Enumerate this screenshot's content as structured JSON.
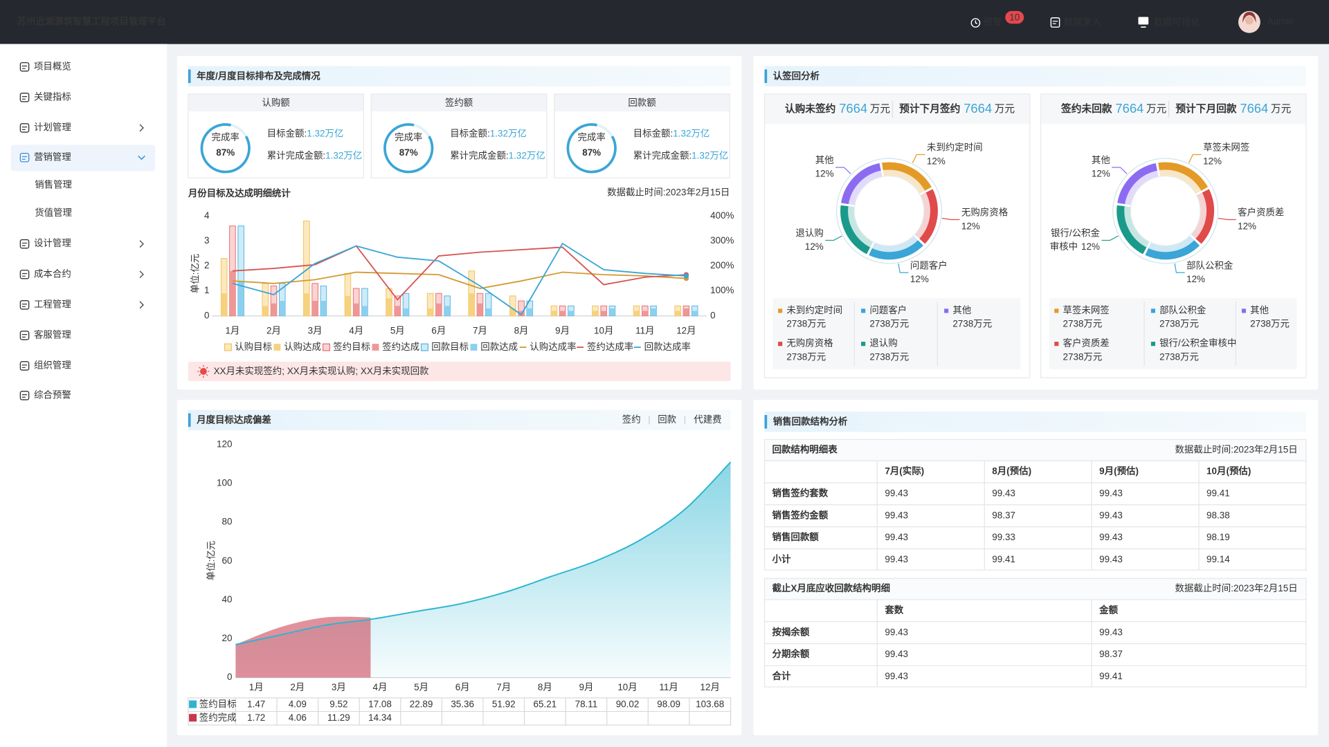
{
  "header": {
    "title": "苏州近湖源筑智慧工程项目管理平台",
    "nav": [
      {
        "label": "预警",
        "badge": 10
      },
      {
        "label": "数据录入"
      },
      {
        "label": "数据可视化"
      }
    ],
    "user": "Admin"
  },
  "sidebar": {
    "items": [
      {
        "label": "项目概览"
      },
      {
        "label": "关键指标"
      },
      {
        "label": "计划管理"
      },
      {
        "label": "营销管理",
        "children": [
          "销售管理",
          "货值管理"
        ]
      },
      {
        "label": "设计管理"
      },
      {
        "label": "成本合约"
      },
      {
        "label": "工程管理"
      },
      {
        "label": "客服管理"
      },
      {
        "label": "组织管理"
      },
      {
        "label": "综合预警"
      }
    ]
  },
  "targets": {
    "title": "年度/月度目标排布及完成情况",
    "cards": [
      {
        "title": "认购额",
        "rate_label": "完成率",
        "rate": 87,
        "rate_value_label": "87%",
        "target_label": "目标金额:",
        "target": "1.32万亿",
        "done_label": "累计完成金额:",
        "done": "1.32万亿"
      },
      {
        "title": "签约额",
        "rate_label": "完成率",
        "rate": 87,
        "rate_value_label": "87%",
        "target_label": "目标金额:",
        "target": "1.32万亿",
        "done_label": "累计完成金额:",
        "done": "1.32万亿"
      },
      {
        "title": "回款额",
        "rate_label": "完成率",
        "rate": 87,
        "rate_value_label": "87%",
        "target_label": "目标金额:",
        "target": "1.32万亿",
        "done_label": "累计完成金额:",
        "done": "1.32万亿"
      }
    ],
    "chart": {
      "type": "combo",
      "title": "月份目标及达成明细统计",
      "note": "数据截止时间:2023年2月15日",
      "ylabel": "单位:亿元",
      "categories": [
        "1月",
        "2月",
        "3月",
        "4月",
        "5月",
        "6月",
        "7月",
        "8月",
        "9月",
        "10月",
        "11月",
        "12月"
      ],
      "ylim": [
        0,
        4
      ],
      "yticks": [
        0,
        1,
        2,
        3,
        4
      ],
      "y2lim": [
        0,
        400
      ],
      "y2ticks": [
        0,
        {
          "value": 100,
          "label": "100%"
        },
        {
          "value": 200,
          "label": "200%"
        },
        {
          "value": 300,
          "label": "300%"
        },
        {
          "value": 400,
          "label": "400%"
        }
      ],
      "series": [
        {
          "name": "认购目标",
          "color": "#fbe9bd",
          "stroke": "#efc25f",
          "values": [
            2.3,
            1.3,
            3.8,
            1.7,
            1.1,
            0.9,
            1.8,
            0.8,
            0.4,
            0.4,
            0.4,
            0.4
          ]
        },
        {
          "name": "认购达成",
          "color": "#f6d27e",
          "values": [
            0.9,
            0.4,
            0.9,
            0.8,
            0.7,
            0.3,
            0.9,
            0.3,
            0.2,
            0.2,
            0.2,
            0.2
          ]
        },
        {
          "name": "签约目标",
          "color": "#fbd3d3",
          "stroke": "#e46f6f",
          "values": [
            3.6,
            1.2,
            1.3,
            1.1,
            0.8,
            0.9,
            0.9,
            0.6,
            0.4,
            0.4,
            0.4,
            0.4
          ]
        },
        {
          "name": "签约达成",
          "color": "#ef9797",
          "values": [
            1.8,
            0.5,
            0.6,
            0.5,
            0.4,
            0.5,
            0.5,
            0.2,
            0.2,
            0.2,
            0.2,
            0.3
          ]
        },
        {
          "name": "回款目标",
          "color": "#cdebf8",
          "stroke": "#55b5e0",
          "values": [
            3.6,
            1.3,
            1.2,
            1.1,
            0.9,
            0.8,
            0.9,
            0.6,
            0.4,
            0.4,
            0.4,
            0.4
          ]
        },
        {
          "name": "回款达成",
          "color": "#8ccfee",
          "values": [
            1.4,
            0.6,
            0.6,
            0.4,
            0.3,
            0.4,
            0.3,
            0.3,
            0.2,
            0.3,
            0.3,
            0.2
          ]
        },
        {
          "name": "认购达成率",
          "color": "#d39a33",
          "axis": "y2",
          "values": [
            140,
            130,
            145,
            175,
            170,
            165,
            110,
            140,
            175,
            165,
            160,
            150
          ]
        },
        {
          "name": "签约达成率",
          "color": "#d9534f",
          "axis": "y2",
          "values": [
            180,
            190,
            205,
            280,
            65,
            240,
            255,
            265,
            275,
            125,
            155,
            165
          ]
        },
        {
          "name": "回款达成率",
          "color": "#3aa5d6",
          "axis": "y2",
          "values": [
            130,
            85,
            210,
            280,
            235,
            220,
            120,
            5,
            290,
            185,
            170,
            160
          ]
        }
      ]
    },
    "warning": "XX月未实现签约; XX月未实现认购; XX月未实现回款"
  },
  "deviation": {
    "title": "月度目标达成偏差",
    "tabs": [
      "签约",
      "回款",
      "代建费"
    ],
    "chart": {
      "type": "area",
      "ylabel": "单位:亿元",
      "categories": [
        "1月",
        "2月",
        "3月",
        "4月",
        "5月",
        "6月",
        "7月",
        "8月",
        "9月",
        "10月",
        "11月",
        "12月"
      ],
      "ylim": [
        0,
        120
      ],
      "yticks": [
        0,
        20,
        40,
        60,
        80,
        100,
        120
      ],
      "series": [
        {
          "name": "签约目标",
          "color": "#2bb5d0",
          "values": [
            17,
            22,
            27,
            30,
            34,
            38,
            44,
            52,
            60,
            71,
            87,
            111
          ]
        },
        {
          "name": "签约完成",
          "color": "#c8374a",
          "values": [
            17,
            26,
            31,
            31,
            null,
            null,
            null,
            null,
            null,
            null,
            null,
            null
          ]
        }
      ],
      "table": [
        [
          1.47,
          4.09,
          9.52,
          17.08,
          22.89,
          35.36,
          51.92,
          65.21,
          78.11,
          90.02,
          98.09,
          103.68
        ],
        [
          1.72,
          4.06,
          11.29,
          14.34,
          null,
          null,
          null,
          null,
          null,
          null,
          null,
          null
        ]
      ]
    }
  },
  "analysis": {
    "title": "认签回分析",
    "panels": [
      {
        "stats": [
          {
            "label": "认购未签约",
            "value": 7664,
            "unit": "万元"
          },
          {
            "label": "预计下月签约",
            "value": 7664,
            "unit": "万元"
          }
        ],
        "chart": {
          "type": "pie",
          "categories": [
            "未到约定时间",
            "无购房资格",
            "问题客户",
            "退认购",
            "其他"
          ],
          "values": [
            12,
            12,
            12,
            12,
            12
          ],
          "value_labels": [
            "12%",
            "12%",
            "12%",
            "12%",
            "12%"
          ],
          "colors": [
            "#e39a27",
            "#e04a4a",
            "#3aa5d6",
            "#1a9a8a",
            "#8b6cf0"
          ],
          "amounts": [
            "2738万元",
            "2738万元",
            "2738万元",
            "2738万元",
            "2738万元"
          ]
        }
      },
      {
        "stats": [
          {
            "label": "签约未回款",
            "value": 7664,
            "unit": "万元"
          },
          {
            "label": "预计下月回款",
            "value": 7664,
            "unit": "万元"
          }
        ],
        "chart": {
          "type": "pie",
          "categories": [
            "草签未网签",
            "客户资质差",
            "部队公积金",
            "银行/公积金审核中",
            "其他"
          ],
          "label_lines": [
            [
              "草签未网签"
            ],
            [
              "客户资质差"
            ],
            [
              "部队公积金"
            ],
            [
              "银行/公积金",
              "审核中"
            ],
            [
              "其他"
            ]
          ],
          "values": [
            12,
            12,
            12,
            12,
            12
          ],
          "value_labels": [
            "12%",
            "12%",
            "12%",
            "12%",
            "12%"
          ],
          "colors": [
            "#e39a27",
            "#e04a4a",
            "#3aa5d6",
            "#1a9a8a",
            "#8b6cf0"
          ],
          "amounts": [
            "2738万元",
            "2738万元",
            "2738万元",
            "2738万元",
            "2738万元"
          ]
        }
      }
    ]
  },
  "structure": {
    "title": "销售回款结构分析",
    "tables": [
      {
        "title": "回款结构明细表",
        "note": "数据截止时间:2023年2月15日",
        "columns": [
          "7月(实际)",
          "8月(预估)",
          "9月(预估)",
          "10月(预估)"
        ],
        "rows": [
          {
            "label": "销售签约套数",
            "values": [
              99.43,
              99.43,
              99.43,
              99.41
            ]
          },
          {
            "label": "销售签约金额",
            "values": [
              99.43,
              98.37,
              99.43,
              98.38
            ]
          },
          {
            "label": "销售回款额",
            "values": [
              99.43,
              99.33,
              99.43,
              98.19
            ]
          },
          {
            "label": "小计",
            "values": [
              99.43,
              99.41,
              99.43,
              99.14
            ]
          }
        ]
      },
      {
        "title": "截止X月底应收回款结构明细",
        "note": "数据截止时间:2023年2月15日",
        "columns": [
          "套数",
          "金额"
        ],
        "rows": [
          {
            "label": "按揭余额",
            "values": [
              99.43,
              99.43
            ]
          },
          {
            "label": "分期余额",
            "values": [
              99.43,
              98.37
            ]
          },
          {
            "label": "合计",
            "values": [
              99.43,
              99.41
            ]
          }
        ]
      }
    ]
  }
}
